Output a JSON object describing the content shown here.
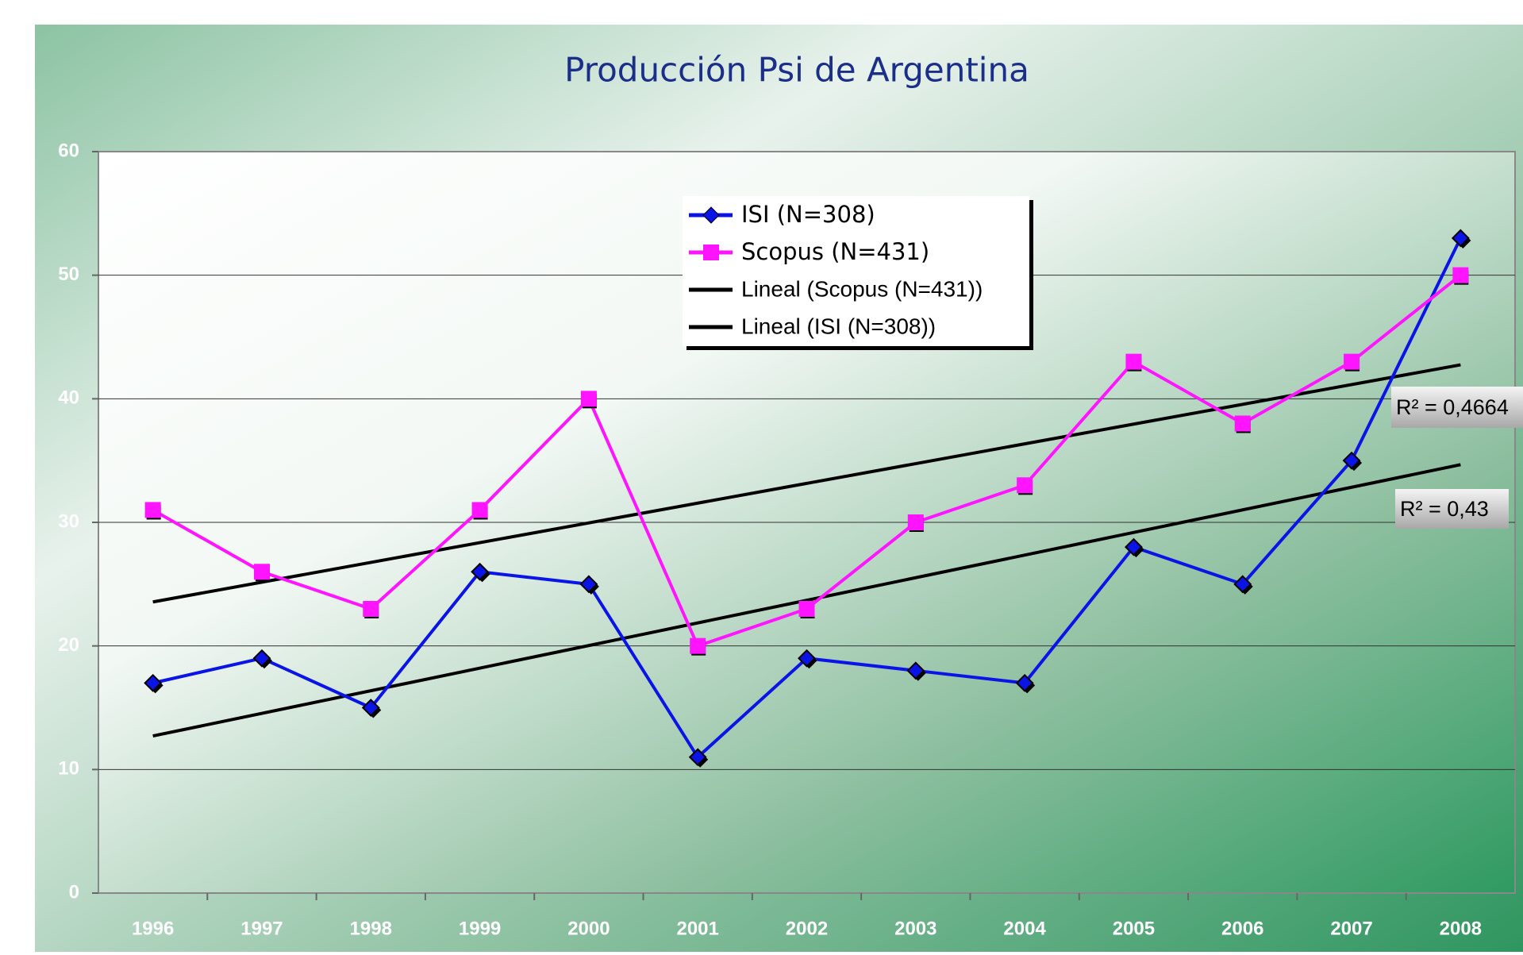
{
  "chart_data": {
    "type": "line",
    "title": "Producción Psi de Argentina",
    "categories": [
      "1996",
      "1997",
      "1998",
      "1999",
      "2000",
      "2001",
      "2002",
      "2003",
      "2004",
      "2005",
      "2006",
      "2007",
      "2008"
    ],
    "series": [
      {
        "name": "ISI  (N=308)",
        "color": "#0a14e6",
        "marker": "diamond",
        "values": [
          17,
          19,
          15,
          26,
          25,
          11,
          19,
          18,
          17,
          28,
          25,
          35,
          53
        ]
      },
      {
        "name": "Scopus  (N=431)",
        "color": "#ff14ff",
        "marker": "square",
        "values": [
          31,
          26,
          23,
          31,
          40,
          20,
          23,
          30,
          33,
          43,
          38,
          43,
          50
        ]
      }
    ],
    "trendlines": [
      {
        "name": "Lineal (Scopus (N=431))",
        "series": 1,
        "color": "#000000",
        "annotation": "R² = 0,4664"
      },
      {
        "name": "Lineal (ISI (N=308))",
        "series": 0,
        "color": "#000000",
        "annotation": "R² = 0,43"
      }
    ],
    "ylim": [
      0,
      60
    ],
    "yticks": [
      0,
      10,
      20,
      30,
      40,
      50,
      60
    ],
    "grid": true
  }
}
